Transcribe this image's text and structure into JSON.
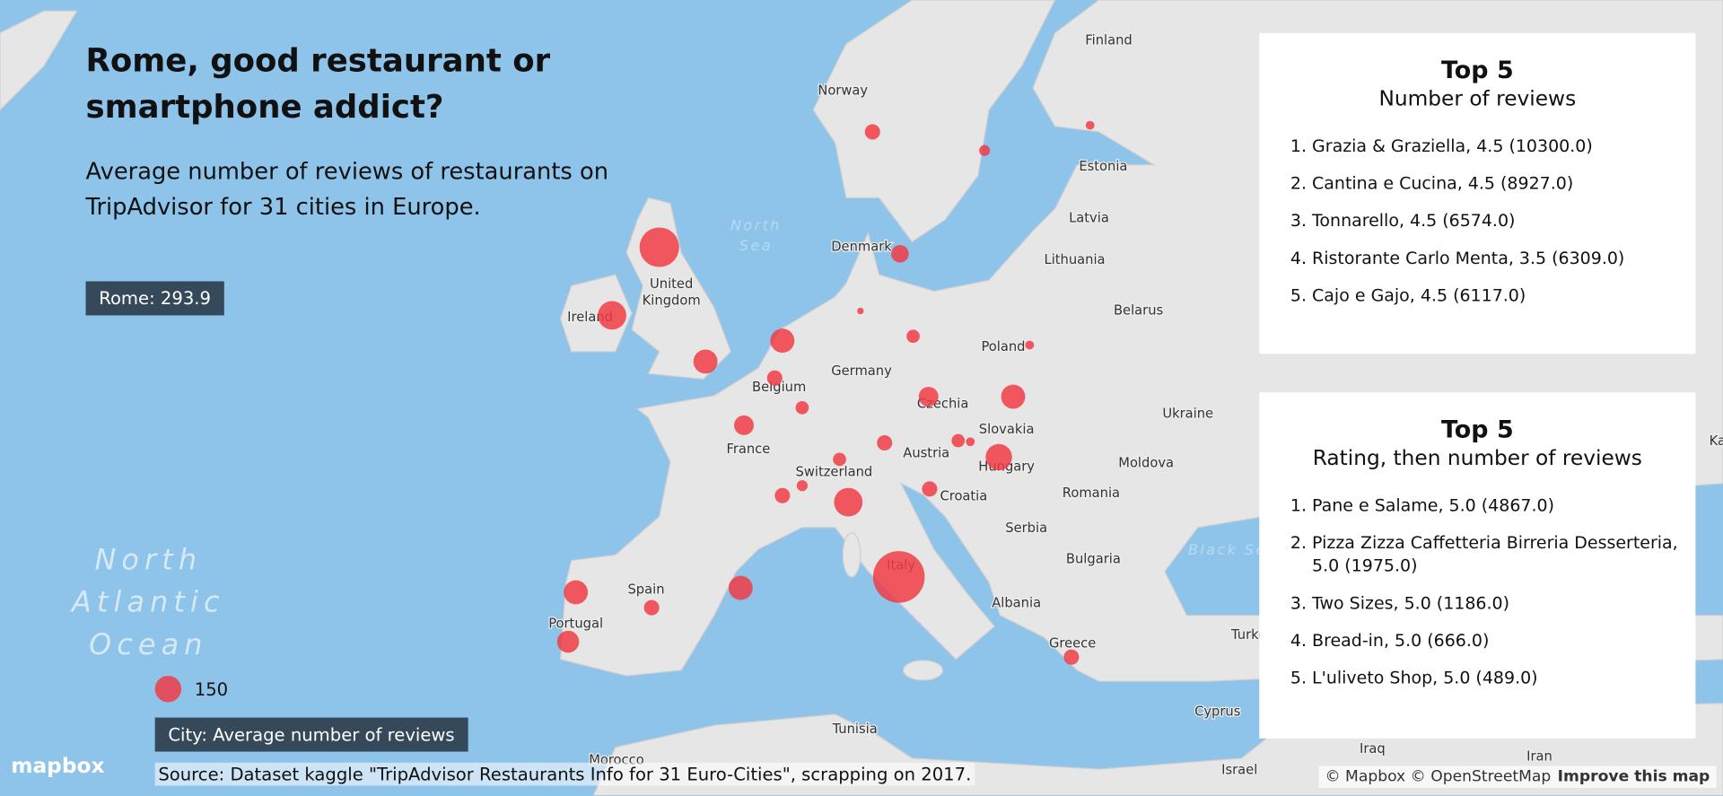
{
  "header": {
    "title": "Rome, good restaurant or smartphone addict?",
    "subtitle": "Average number of reviews of restaurants on TripAdvisor for 31 cities in Europe."
  },
  "highlight": "Rome: 293.9",
  "legend": {
    "size_value": 150,
    "caption": "City: Average number of reviews"
  },
  "source": "Source: Dataset kaggle \"TripAdvisor Restaurants Info for 31 Euro-Cities\", scrapping on 2017.",
  "top_reviews": {
    "title": "Top 5",
    "subtitle": "Number of reviews",
    "items": [
      "Grazia & Graziella, 4.5  (10300.0)",
      "Cantina e Cucina, 4.5  (8927.0)",
      "Tonnarello, 4.5  (6574.0)",
      "Ristorante Carlo Menta, 3.5  (6309.0)",
      "Cajo e Gajo, 4.5  (6117.0)"
    ]
  },
  "top_rating": {
    "title": "Top 5",
    "subtitle": "Rating, then number of reviews",
    "items": [
      "Pane e Salame, 5.0  (4867.0)",
      "Pizza Zizza Caffetteria Birreria Desserteria, 5.0  (1975.0)",
      "Two Sizes, 5.0  (1186.0)",
      "Bread-in, 5.0  (666.0)",
      "L'uliveto Shop, 5.0  (489.0)"
    ]
  },
  "map_labels": [
    "Finland",
    "Norway",
    "Estonia",
    "Latvia",
    "Lithuania",
    "Belarus",
    "Denmark",
    "Poland",
    "Germany",
    "Belgium",
    "France",
    "Czechia",
    "Slovakia",
    "Austria",
    "Switzerland",
    "Hungary",
    "Moldova",
    "Ukraine",
    "Romania",
    "Croatia",
    "Serbia",
    "Bulgaria",
    "Albania",
    "Italy",
    "Spain",
    "Portugal",
    "Greece",
    "Tunisia",
    "Morocco",
    "Cyprus",
    "Iraq",
    "Iran",
    "Israel",
    "Ireland",
    "United",
    "Kingdom",
    "Turkey",
    "Kazakhstan"
  ],
  "water_labels": [
    "North",
    "Sea",
    "Black Sea"
  ],
  "ocean_labels": [
    "North",
    "Atlantic",
    "Ocean"
  ],
  "bubbles": [
    225,
    162,
    137,
    137,
    87,
    75,
    112,
    87,
    62,
    75,
    162,
    293.9,
    87,
    75,
    50,
    150,
    112,
    137,
    50,
    75,
    37,
    100,
    87,
    62,
    50,
    87,
    137,
    87,
    137,
    125,
    87
  ],
  "attribution": {
    "logo": "mapbox",
    "copyright": "© Mapbox © OpenStreetMap",
    "improve": "Improve this map"
  }
}
